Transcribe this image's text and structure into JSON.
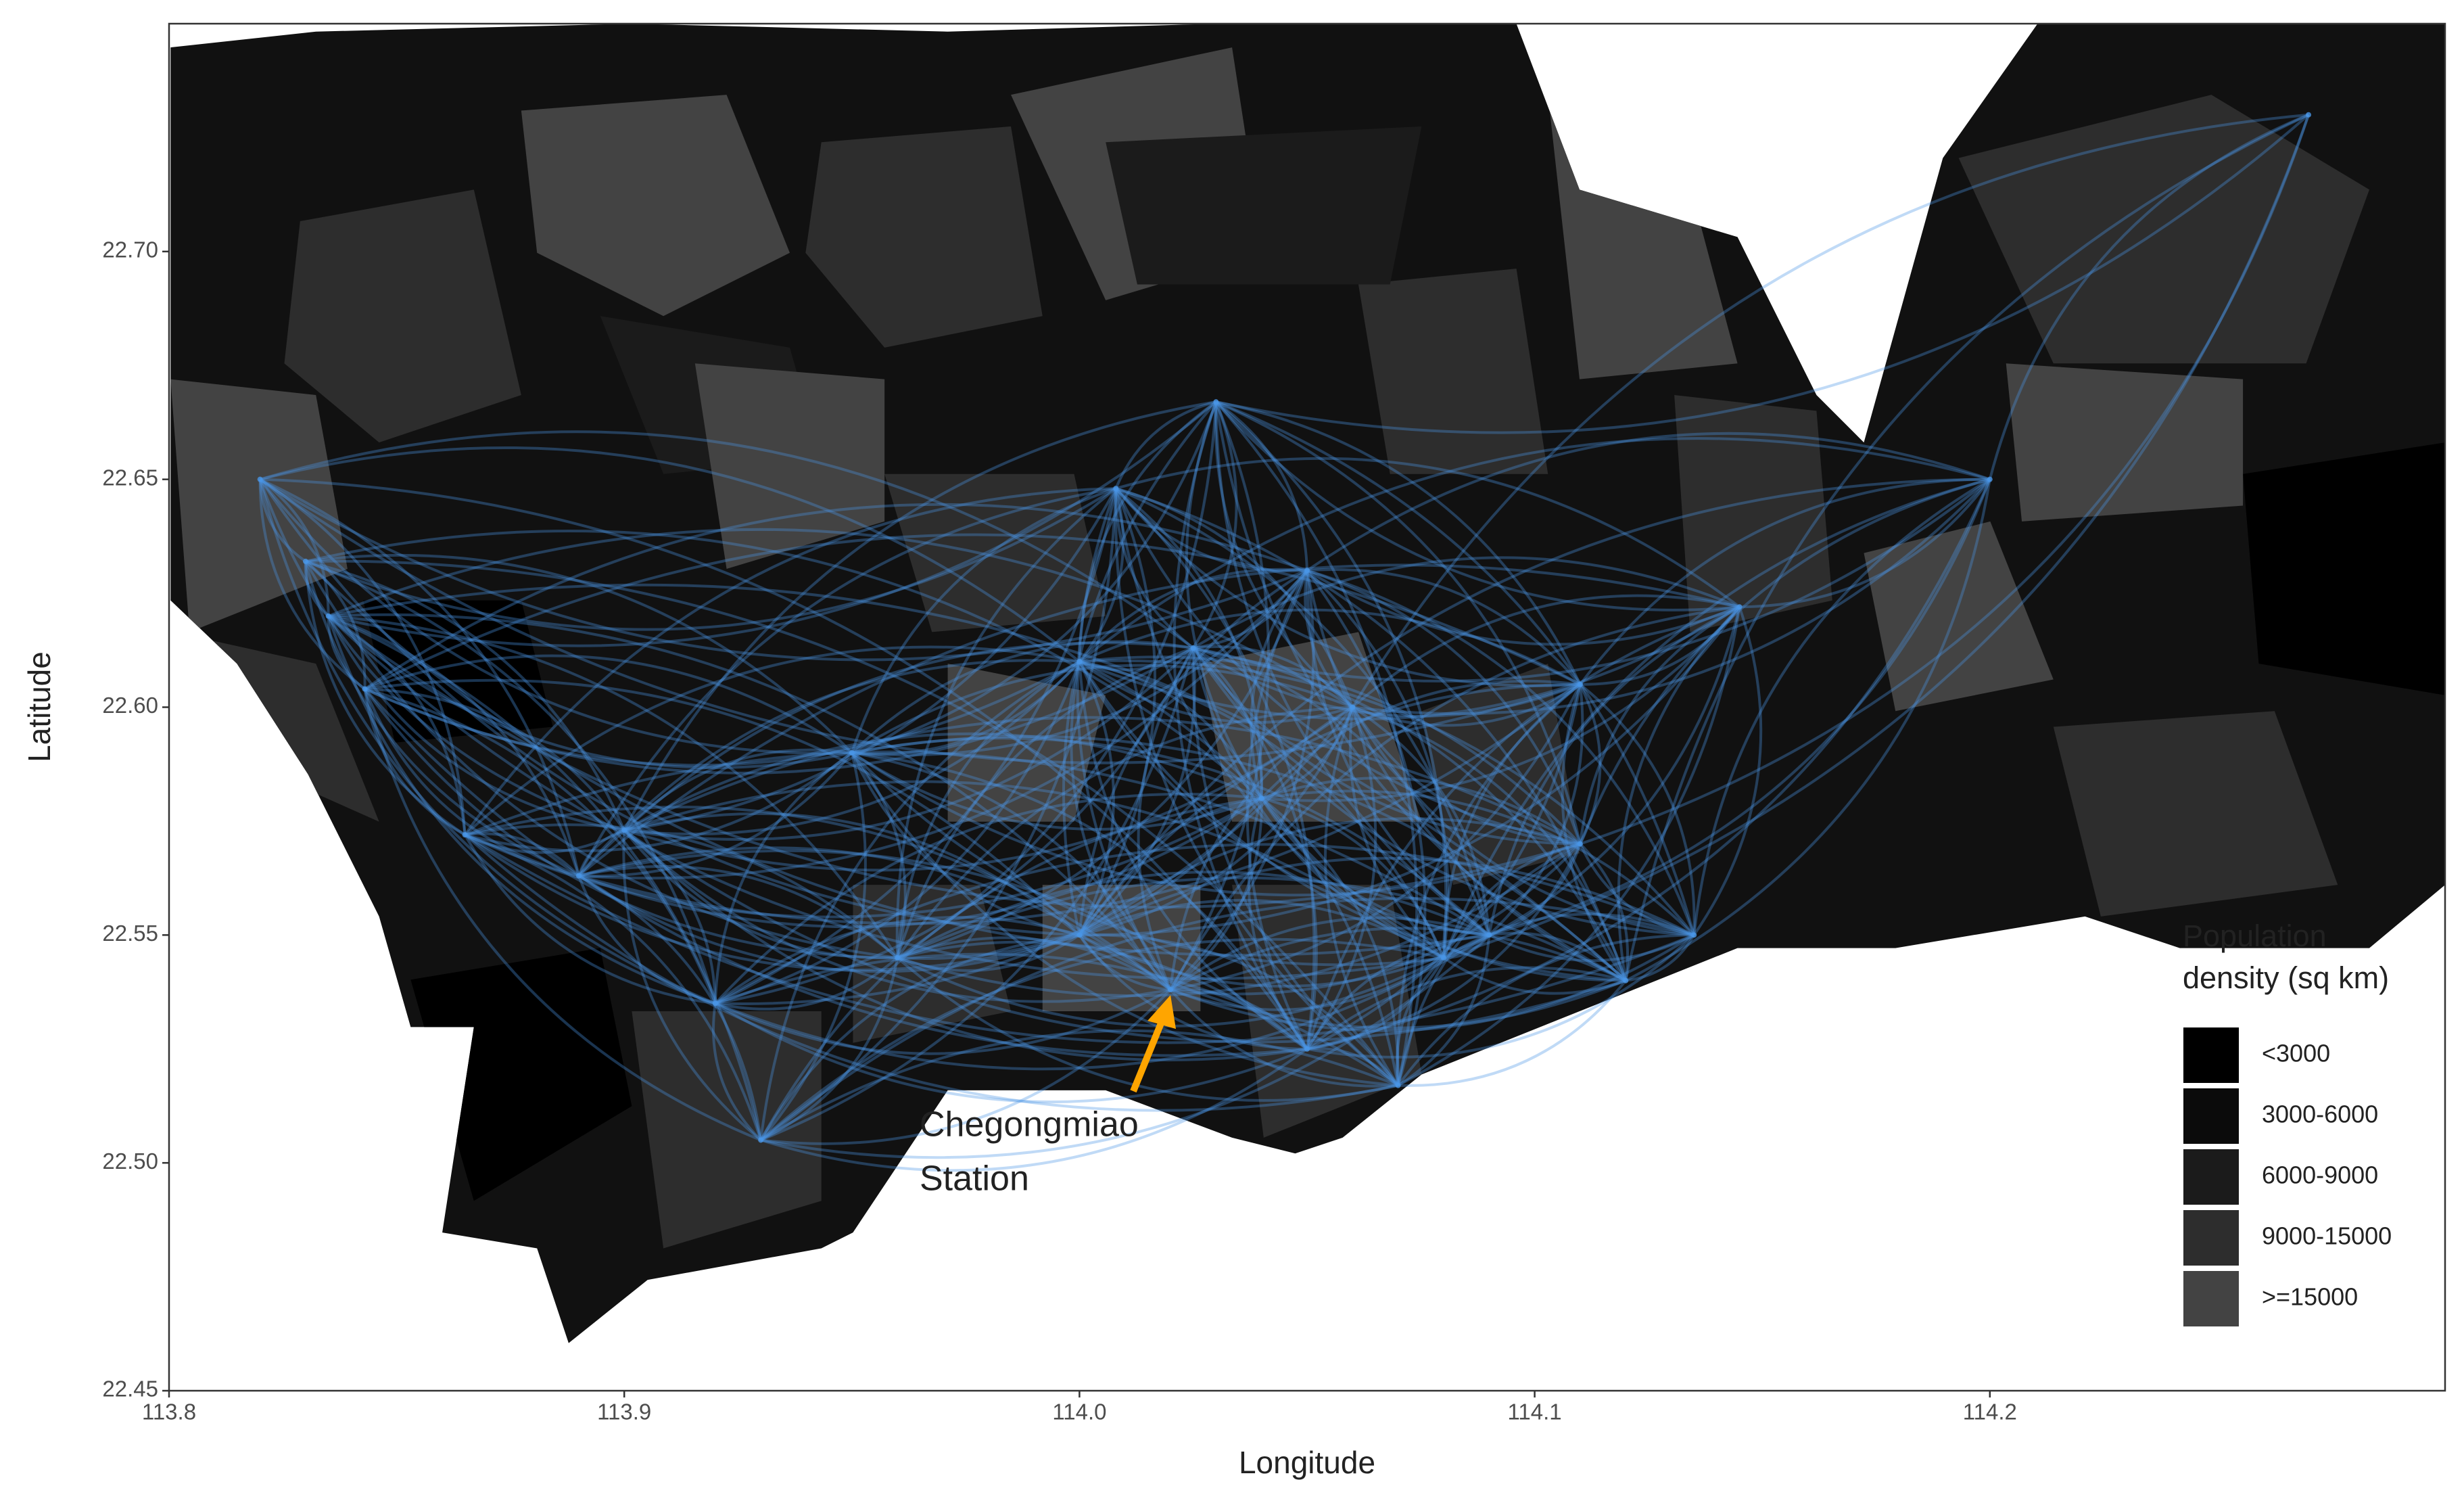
{
  "chart_data": {
    "type": "flow-map",
    "x_label": "Longitude",
    "y_label": "Latitude",
    "xlim": [
      113.8,
      114.3
    ],
    "ylim": [
      22.45,
      22.75
    ],
    "xticks": [
      113.8,
      113.9,
      {
        "value": 114,
        "label": "114.0"
      },
      114.1,
      114.2
    ],
    "yticks": [
      22.45,
      {
        "value": 22.5,
        "label": "22.50"
      },
      22.55,
      {
        "value": 22.6,
        "label": "22.60"
      },
      22.65,
      {
        "value": 22.7,
        "label": "22.70"
      }
    ],
    "grid": false,
    "flow_color": "#4a96e6",
    "stations": {
      "x": [
        113.82,
        113.83,
        113.835,
        113.843,
        113.865,
        113.9,
        113.89,
        113.92,
        113.96,
        114.0,
        114.02,
        114.04,
        114.025,
        114.03,
        114.008,
        114.05,
        114.06,
        114.07,
        114.05,
        114.08,
        114.09,
        114.11,
        114.12,
        114.135,
        114.145,
        114.11,
        114.27,
        114.2,
        113.93,
        113.95,
        114.0
      ],
      "y": [
        22.65,
        22.632,
        22.62,
        22.604,
        22.572,
        22.573,
        22.563,
        22.535,
        22.545,
        22.55,
        22.538,
        22.58,
        22.613,
        22.667,
        22.648,
        22.63,
        22.6,
        22.517,
        22.525,
        22.545,
        22.55,
        22.605,
        22.54,
        22.55,
        22.622,
        22.57,
        22.73,
        22.65,
        22.505,
        22.59,
        22.61
      ]
    },
    "annotation": {
      "lines": [
        "Chegongmiao",
        "Station"
      ],
      "x": 114.02,
      "y": 22.538,
      "color": "#FFA500"
    },
    "legend": {
      "title": [
        "Population",
        "density (sq km)"
      ],
      "position": "right",
      "labels": [
        "<3000",
        "3000-6000",
        "6000-9000",
        "9000-15000",
        ">=15000"
      ],
      "colors": [
        "#000000",
        "#0b0b0b",
        "#1b1b1b",
        "#2d2d2d",
        "#434343"
      ]
    }
  }
}
